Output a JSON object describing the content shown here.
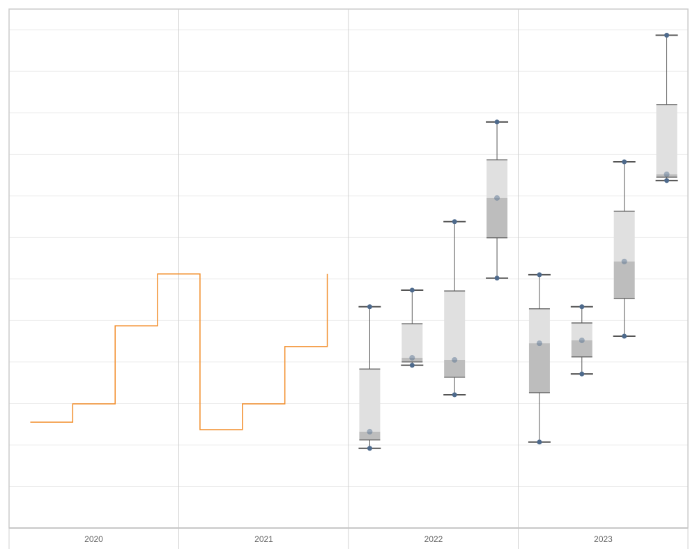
{
  "chart_data": {
    "type": "step-line + boxplot",
    "title": "",
    "xlabel": "",
    "ylabel": "",
    "x_tick_labels": [
      "2020",
      "2021",
      "2022",
      "2023"
    ],
    "ylim": [
      0,
      12.5
    ],
    "y_gridlines": [
      1,
      2,
      3,
      4,
      5,
      6,
      7,
      8,
      9,
      10,
      11,
      12
    ],
    "grid": true,
    "y_axis_labels_shown": false,
    "step_line": {
      "color": "#f28e2b",
      "points": [
        {
          "year": "2020",
          "quarter": 1,
          "value": 2.55
        },
        {
          "year": "2020",
          "quarter": 2,
          "value": 2.99
        },
        {
          "year": "2020",
          "quarter": 3,
          "value": 4.87
        },
        {
          "year": "2020",
          "quarter": 4,
          "value": 6.12
        },
        {
          "year": "2021",
          "quarter": 1,
          "value": 2.37
        },
        {
          "year": "2021",
          "quarter": 2,
          "value": 2.99
        },
        {
          "year": "2021",
          "quarter": 3,
          "value": 4.37
        },
        {
          "year": "2021",
          "quarter": 4,
          "value": 6.12
        }
      ]
    },
    "boxplots": {
      "upper_box_color": "#e0e0e0",
      "lower_box_color": "#bdbdbd",
      "whisker_color": "#555555",
      "point_color": "#4e6a8c",
      "items": [
        {
          "year": "2022",
          "quarter": 1,
          "min": 1.92,
          "q1": 2.12,
          "median": 2.32,
          "q3": 3.83,
          "max": 5.33
        },
        {
          "year": "2022",
          "quarter": 2,
          "min": 3.92,
          "q1": 4.0,
          "median": 4.1,
          "q3": 4.92,
          "max": 5.73
        },
        {
          "year": "2022",
          "quarter": 3,
          "min": 3.21,
          "q1": 3.63,
          "median": 4.05,
          "q3": 5.71,
          "max": 7.38
        },
        {
          "year": "2022",
          "quarter": 4,
          "min": 6.02,
          "q1": 6.99,
          "median": 7.95,
          "q3": 8.87,
          "max": 9.78
        },
        {
          "year": "2023",
          "quarter": 1,
          "min": 2.07,
          "q1": 3.26,
          "median": 4.45,
          "q3": 5.28,
          "max": 6.1
        },
        {
          "year": "2023",
          "quarter": 2,
          "min": 3.71,
          "q1": 4.12,
          "median": 4.52,
          "q3": 4.94,
          "max": 5.33
        },
        {
          "year": "2023",
          "quarter": 3,
          "min": 4.62,
          "q1": 5.53,
          "median": 6.42,
          "q3": 7.63,
          "max": 8.82
        },
        {
          "year": "2023",
          "quarter": 4,
          "min": 8.37,
          "q1": 8.45,
          "median": 8.52,
          "q3": 10.2,
          "max": 11.87
        }
      ]
    }
  }
}
